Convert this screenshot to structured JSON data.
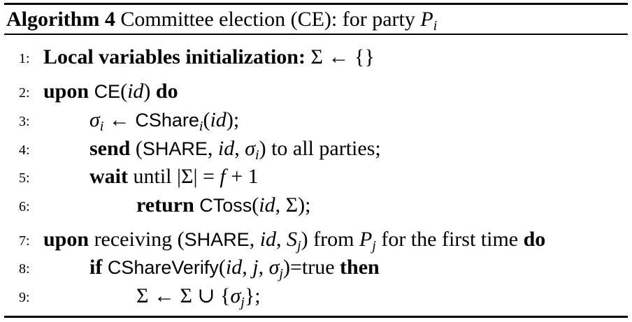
{
  "caption": {
    "label": "Algorithm 4",
    "title": "Committee election (CE): for party ",
    "party": "P",
    "party_sub": "i"
  },
  "lines": [
    {
      "no": "1:",
      "kw": "Local variables initialization:",
      "rest": " Σ ← {}"
    },
    {
      "no": "2:",
      "kw": "upon",
      "fn": "CE",
      "arg": "id",
      "kw2": "do"
    },
    {
      "no": "3:",
      "sigma": "σ",
      "sub": "i",
      "arrow": " ← ",
      "fn": "CShare",
      "fn_sub": "i",
      "arg": "id",
      "tail": ";"
    },
    {
      "no": "4:",
      "kw": "send",
      "msg": "SHARE",
      "arg": "id",
      "sigma": "σ",
      "sub": "i",
      "tail": " to all parties;"
    },
    {
      "no": "5:",
      "kw": "wait",
      "text": " until |Σ| = ",
      "f": "f",
      "tail": " + 1"
    },
    {
      "no": "6:",
      "kw": "return",
      "fn": "CToss",
      "arg": "id",
      "tail": ", Σ);"
    },
    {
      "no": "7:",
      "kw": "upon",
      "text": " receiving ",
      "msg": "SHARE",
      "arg": "id",
      "S": "S",
      "sub": "j",
      "mid": " from ",
      "P": "P",
      "psub": "j",
      "tail": " for the first time ",
      "kw2": "do"
    },
    {
      "no": "8:",
      "kw": "if",
      "fn": "CShareVerify",
      "arg": "id",
      "j": "j",
      "sigma": "σ",
      "sub": "j",
      "tail": "=true ",
      "kw2": "then"
    },
    {
      "no": "9:",
      "text": "Σ ← Σ ∪ {",
      "sigma": "σ",
      "sub": "j",
      "tail": "};"
    }
  ]
}
